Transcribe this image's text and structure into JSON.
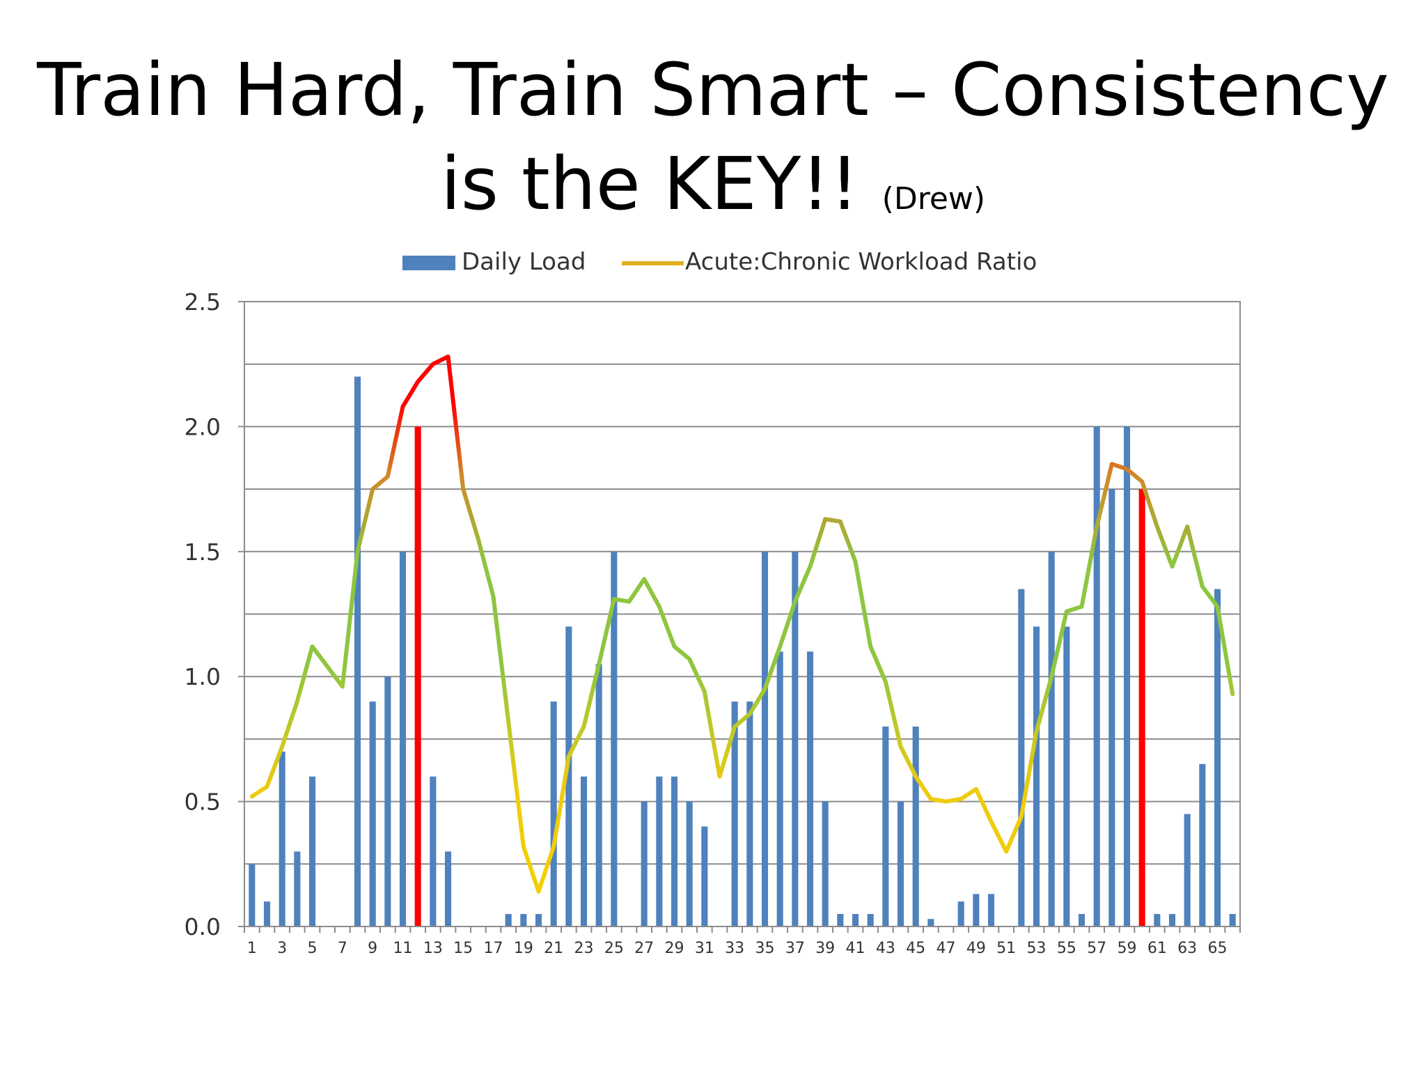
{
  "slide": {
    "title_line1": "Train Hard, Train Smart – Consistency",
    "title_line2": "is the KEY!!",
    "title_attribution": "(Drew)"
  },
  "chart_data": {
    "type": "bar",
    "title": "",
    "xlabel": "",
    "ylabel": "",
    "ylim": [
      0,
      2.5
    ],
    "yticks": [
      "0.0",
      "0.5",
      "1.0",
      "1.5",
      "2.0",
      "2.5"
    ],
    "grid": true,
    "gridlines": [
      0,
      0.25,
      0.5,
      0.75,
      1.0,
      1.25,
      1.5,
      1.75,
      2.0,
      2.25,
      2.5
    ],
    "legend_position": "top-center",
    "x": [
      1,
      2,
      3,
      4,
      5,
      6,
      7,
      8,
      9,
      10,
      11,
      12,
      13,
      14,
      15,
      16,
      17,
      18,
      19,
      20,
      21,
      22,
      23,
      24,
      25,
      26,
      27,
      28,
      29,
      30,
      31,
      32,
      33,
      34,
      35,
      36,
      37,
      38,
      39,
      40,
      41,
      42,
      43,
      44,
      45,
      46,
      47,
      48,
      49,
      50,
      51,
      52,
      53,
      54,
      55,
      56,
      57,
      58,
      59,
      60,
      61,
      62,
      63,
      64,
      65,
      66
    ],
    "x_tick_labels": [
      "1",
      "3",
      "5",
      "7",
      "9",
      "11",
      "13",
      "15",
      "17",
      "19",
      "21",
      "23",
      "25",
      "27",
      "29",
      "31",
      "33",
      "35",
      "37",
      "39",
      "41",
      "43",
      "45",
      "47",
      "49",
      "51",
      "53",
      "55",
      "57",
      "59",
      "61",
      "63",
      "65"
    ],
    "series": [
      {
        "name": "Daily Load",
        "type": "bar",
        "color": "#4f81bd",
        "highlight_color": "#ff0000",
        "highlight_days": [
          12,
          60
        ],
        "values": [
          0.25,
          0.1,
          0.7,
          0.3,
          0.6,
          0,
          0,
          2.2,
          0.9,
          1.0,
          1.5,
          2.0,
          0.6,
          0.3,
          0,
          0,
          0,
          0.05,
          0.05,
          0.05,
          0.9,
          1.2,
          0.6,
          1.05,
          1.5,
          0,
          0.5,
          0.6,
          0.6,
          0.5,
          0.4,
          0,
          0.9,
          0.9,
          1.5,
          1.1,
          1.5,
          1.1,
          0.5,
          0.05,
          0.05,
          0.05,
          0.8,
          0.5,
          0.8,
          0.03,
          0,
          0.1,
          0.13,
          0.13,
          0,
          1.35,
          1.2,
          1.5,
          1.2,
          0.05,
          2.0,
          1.75,
          2.0,
          1.75,
          0.05,
          0.05,
          0.45,
          0.65,
          1.35,
          0.05
        ]
      },
      {
        "name": "Acute:Chronic Workload Ratio",
        "type": "line",
        "gradient_colors": {
          "low": "#f5d000",
          "mid": "#8dc63f",
          "high": "#ff0000"
        },
        "values": [
          0.52,
          0.56,
          0.72,
          0.9,
          1.12,
          1.04,
          0.96,
          1.5,
          1.75,
          1.8,
          2.08,
          2.18,
          2.25,
          2.28,
          1.75,
          1.55,
          1.32,
          0.82,
          0.32,
          0.14,
          0.32,
          0.68,
          0.8,
          1.05,
          1.31,
          1.3,
          1.39,
          1.28,
          1.12,
          1.07,
          0.94,
          0.6,
          0.8,
          0.85,
          0.95,
          1.12,
          1.3,
          1.44,
          1.63,
          1.62,
          1.46,
          1.12,
          0.98,
          0.72,
          0.6,
          0.51,
          0.5,
          0.51,
          0.55,
          0.42,
          0.3,
          0.44,
          0.78,
          1.0,
          1.26,
          1.28,
          1.6,
          1.85,
          1.83,
          1.78,
          1.6,
          1.44,
          1.6,
          1.36,
          1.28,
          0.93
        ]
      }
    ]
  }
}
